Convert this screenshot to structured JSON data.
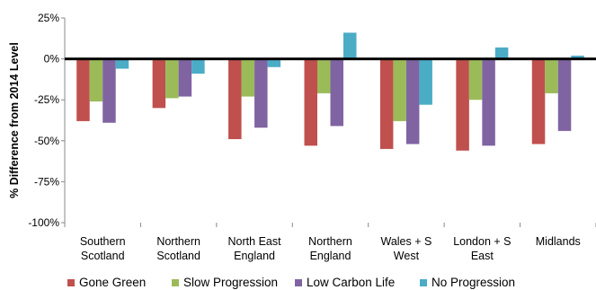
{
  "chart_data": {
    "type": "bar",
    "title": "",
    "xlabel": "",
    "ylabel": "% Difference from 2014 Level",
    "ylim": [
      -100,
      25
    ],
    "yticks": [
      25,
      0,
      -25,
      -50,
      -75,
      -100
    ],
    "ytick_labels": [
      "25%",
      "0%",
      "-25%",
      "-50%",
      "-75%",
      "-100%"
    ],
    "grid": false,
    "legend_position": "bottom",
    "categories": [
      [
        "Southern",
        "Scotland"
      ],
      [
        "Northern",
        "Scotland"
      ],
      [
        "North East",
        "England"
      ],
      [
        "Northern",
        "England"
      ],
      [
        "Wales + S",
        "West"
      ],
      [
        "London + S",
        "East"
      ],
      [
        "Midlands"
      ]
    ],
    "series": [
      {
        "name": "Gone Green",
        "color": "#c0504d",
        "values": [
          -38,
          -30,
          -49,
          -53,
          -55,
          -56,
          -52
        ]
      },
      {
        "name": "Slow Progression",
        "color": "#9bbb59",
        "values": [
          -26,
          -24,
          -23,
          -21,
          -38,
          -25,
          -21
        ]
      },
      {
        "name": "Low Carbon Life",
        "color": "#8064a2",
        "values": [
          -39,
          -23,
          -42,
          -41,
          -52,
          -53,
          -44
        ]
      },
      {
        "name": "No Progression",
        "color": "#4bacc6",
        "values": [
          -6,
          -9,
          -5,
          16,
          -28,
          7,
          2
        ]
      }
    ]
  }
}
